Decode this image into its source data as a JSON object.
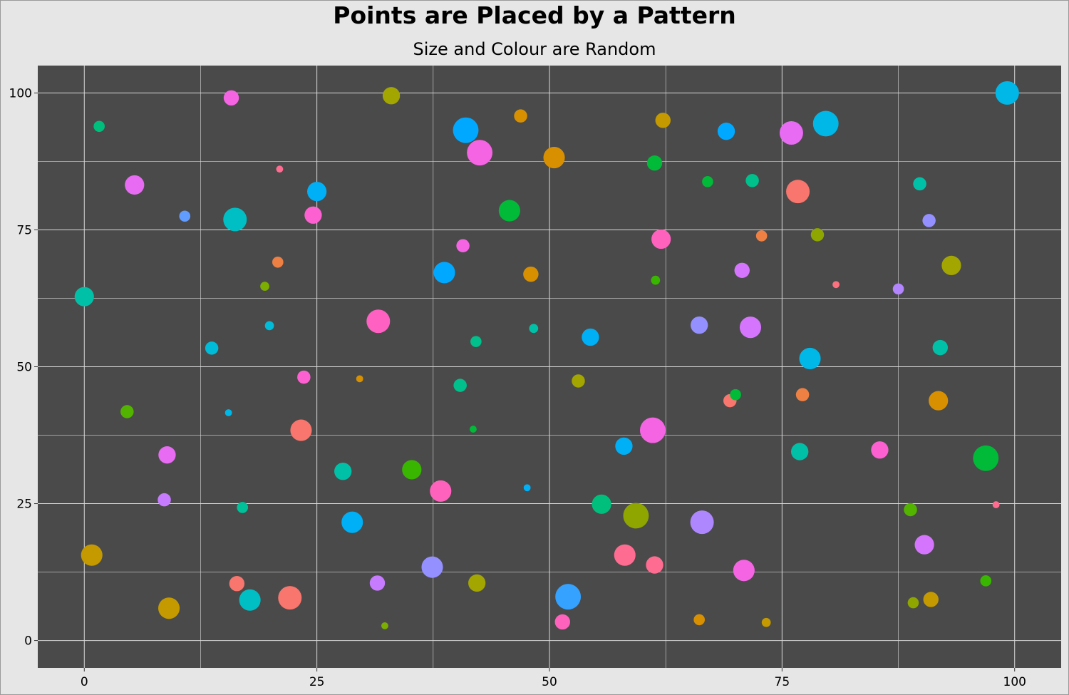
{
  "chart_data": {
    "type": "scatter",
    "title": "Points are Placed by a Pattern",
    "subtitle": "Size and Colour are Random",
    "xlabel": "",
    "ylabel": "",
    "xlim": [
      -5,
      105
    ],
    "ylim": [
      -5,
      105
    ],
    "x_ticks": [
      0,
      25,
      50,
      75,
      100
    ],
    "y_ticks": [
      0,
      25,
      50,
      75,
      100
    ],
    "grid": true,
    "legend": "none",
    "background": "#4a4a4a",
    "grid_color": "#d9d9d9",
    "points": [
      {
        "x": 0.0,
        "y": 62.8,
        "size": 8,
        "color": "#00c1a8"
      },
      {
        "x": 0.8,
        "y": 15.6,
        "size": 9,
        "color": "#c49a00"
      },
      {
        "x": 1.6,
        "y": 93.9,
        "size": 4,
        "color": "#00bf7d"
      },
      {
        "x": 4.6,
        "y": 41.8,
        "size": 5,
        "color": "#53b400"
      },
      {
        "x": 5.4,
        "y": 83.2,
        "size": 8,
        "color": "#e76bf3"
      },
      {
        "x": 8.6,
        "y": 25.7,
        "size": 5,
        "color": "#c77cff"
      },
      {
        "x": 8.9,
        "y": 33.9,
        "size": 7,
        "color": "#e76bf3"
      },
      {
        "x": 9.1,
        "y": 5.9,
        "size": 9,
        "color": "#c49a00"
      },
      {
        "x": 10.8,
        "y": 77.5,
        "size": 4,
        "color": "#619cff"
      },
      {
        "x": 13.7,
        "y": 53.4,
        "size": 5,
        "color": "#00bcd8"
      },
      {
        "x": 15.5,
        "y": 41.6,
        "size": 2,
        "color": "#00b8e7"
      },
      {
        "x": 15.8,
        "y": 99.1,
        "size": 6,
        "color": "#f564e3"
      },
      {
        "x": 16.2,
        "y": 76.9,
        "size": 10,
        "color": "#00bfc4"
      },
      {
        "x": 16.4,
        "y": 10.4,
        "size": 6,
        "color": "#f8766d"
      },
      {
        "x": 17.0,
        "y": 24.3,
        "size": 4,
        "color": "#00c19a"
      },
      {
        "x": 17.8,
        "y": 7.4,
        "size": 9,
        "color": "#00bfc4"
      },
      {
        "x": 19.4,
        "y": 64.7,
        "size": 3,
        "color": "#7cae00"
      },
      {
        "x": 19.9,
        "y": 57.5,
        "size": 3,
        "color": "#00bcd8"
      },
      {
        "x": 20.8,
        "y": 69.1,
        "size": 4,
        "color": "#ee8044"
      },
      {
        "x": 21.0,
        "y": 86.1,
        "size": 2,
        "color": "#ff6c91"
      },
      {
        "x": 22.1,
        "y": 7.8,
        "size": 10,
        "color": "#f8766d"
      },
      {
        "x": 23.3,
        "y": 38.4,
        "size": 9,
        "color": "#f8766d"
      },
      {
        "x": 23.6,
        "y": 48.1,
        "size": 5,
        "color": "#fd61d1"
      },
      {
        "x": 24.6,
        "y": 77.7,
        "size": 7,
        "color": "#fd61d1"
      },
      {
        "x": 25.0,
        "y": 82.0,
        "size": 8,
        "color": "#00b0f6"
      },
      {
        "x": 27.8,
        "y": 30.9,
        "size": 7,
        "color": "#00c1a8"
      },
      {
        "x": 28.8,
        "y": 21.6,
        "size": 9,
        "color": "#00b0f6"
      },
      {
        "x": 29.6,
        "y": 47.8,
        "size": 2,
        "color": "#d89000"
      },
      {
        "x": 31.6,
        "y": 58.3,
        "size": 10,
        "color": "#ff61c3"
      },
      {
        "x": 31.5,
        "y": 10.5,
        "size": 6,
        "color": "#c77cff"
      },
      {
        "x": 32.3,
        "y": 2.7,
        "size": 2,
        "color": "#7cae00"
      },
      {
        "x": 33.0,
        "y": 99.5,
        "size": 7,
        "color": "#a3a500"
      },
      {
        "x": 35.2,
        "y": 31.2,
        "size": 8,
        "color": "#39b600"
      },
      {
        "x": 37.4,
        "y": 13.4,
        "size": 9,
        "color": "#9590ff"
      },
      {
        "x": 38.3,
        "y": 27.3,
        "size": 9,
        "color": "#ff62bc"
      },
      {
        "x": 38.7,
        "y": 67.2,
        "size": 9,
        "color": "#00a9ff"
      },
      {
        "x": 40.4,
        "y": 46.6,
        "size": 5,
        "color": "#00c08b"
      },
      {
        "x": 40.7,
        "y": 72.1,
        "size": 5,
        "color": "#f564e3"
      },
      {
        "x": 41.0,
        "y": 93.2,
        "size": 11,
        "color": "#00a9ff"
      },
      {
        "x": 41.8,
        "y": 38.6,
        "size": 2,
        "color": "#00ba38"
      },
      {
        "x": 42.1,
        "y": 54.6,
        "size": 4,
        "color": "#00c08b"
      },
      {
        "x": 42.2,
        "y": 10.5,
        "size": 7,
        "color": "#a3a500"
      },
      {
        "x": 42.5,
        "y": 89.1,
        "size": 11,
        "color": "#f564e3"
      },
      {
        "x": 45.7,
        "y": 78.5,
        "size": 9,
        "color": "#00ba38"
      },
      {
        "x": 46.9,
        "y": 95.8,
        "size": 5,
        "color": "#d89000"
      },
      {
        "x": 47.6,
        "y": 27.9,
        "size": 2,
        "color": "#00b0f6"
      },
      {
        "x": 48.0,
        "y": 66.9,
        "size": 6,
        "color": "#d89000"
      },
      {
        "x": 48.3,
        "y": 57.0,
        "size": 3,
        "color": "#00c1a8"
      },
      {
        "x": 50.5,
        "y": 88.2,
        "size": 9,
        "color": "#d89000"
      },
      {
        "x": 51.4,
        "y": 3.4,
        "size": 6,
        "color": "#ff62bc"
      },
      {
        "x": 52.0,
        "y": 8.0,
        "size": 11,
        "color": "#35a2ff"
      },
      {
        "x": 53.1,
        "y": 47.4,
        "size": 5,
        "color": "#a3a500"
      },
      {
        "x": 54.4,
        "y": 55.4,
        "size": 7,
        "color": "#00b0f6"
      },
      {
        "x": 55.6,
        "y": 24.9,
        "size": 8,
        "color": "#00bf7d"
      },
      {
        "x": 58.0,
        "y": 35.5,
        "size": 7,
        "color": "#00b0f6"
      },
      {
        "x": 58.1,
        "y": 15.6,
        "size": 9,
        "color": "#ff6c91"
      },
      {
        "x": 59.3,
        "y": 22.8,
        "size": 11,
        "color": "#8fa500"
      },
      {
        "x": 61.1,
        "y": 38.4,
        "size": 11,
        "color": "#f564e3"
      },
      {
        "x": 61.3,
        "y": 13.8,
        "size": 7,
        "color": "#ff6c91"
      },
      {
        "x": 61.3,
        "y": 87.2,
        "size": 6,
        "color": "#00ba38"
      },
      {
        "x": 61.4,
        "y": 65.8,
        "size": 3,
        "color": "#39b600"
      },
      {
        "x": 62.0,
        "y": 73.3,
        "size": 8,
        "color": "#ff62bc"
      },
      {
        "x": 62.2,
        "y": 95.0,
        "size": 6,
        "color": "#c49a00"
      },
      {
        "x": 66.1,
        "y": 3.8,
        "size": 4,
        "color": "#d89000"
      },
      {
        "x": 66.1,
        "y": 57.6,
        "size": 7,
        "color": "#9590ff"
      },
      {
        "x": 66.4,
        "y": 21.6,
        "size": 10,
        "color": "#ae87ff"
      },
      {
        "x": 67.0,
        "y": 83.8,
        "size": 4,
        "color": "#00ba38"
      },
      {
        "x": 69.0,
        "y": 93.0,
        "size": 7,
        "color": "#00a9ff"
      },
      {
        "x": 69.4,
        "y": 43.8,
        "size": 5,
        "color": "#f8766d"
      },
      {
        "x": 70.0,
        "y": 44.9,
        "size": 4,
        "color": "#00ba38"
      },
      {
        "x": 70.7,
        "y": 67.6,
        "size": 6,
        "color": "#d575fe"
      },
      {
        "x": 70.9,
        "y": 12.8,
        "size": 9,
        "color": "#f564e3"
      },
      {
        "x": 71.6,
        "y": 57.2,
        "size": 9,
        "color": "#d575fe"
      },
      {
        "x": 71.8,
        "y": 84.0,
        "size": 5,
        "color": "#00c08b"
      },
      {
        "x": 72.8,
        "y": 73.9,
        "size": 4,
        "color": "#ee8044"
      },
      {
        "x": 73.3,
        "y": 3.3,
        "size": 3,
        "color": "#c49a00"
      },
      {
        "x": 76.0,
        "y": 92.7,
        "size": 10,
        "color": "#e76bf3"
      },
      {
        "x": 76.7,
        "y": 82.0,
        "size": 10,
        "color": "#f8766d"
      },
      {
        "x": 76.9,
        "y": 34.5,
        "size": 7,
        "color": "#00c1a8"
      },
      {
        "x": 77.2,
        "y": 44.9,
        "size": 5,
        "color": "#ee8044"
      },
      {
        "x": 78.0,
        "y": 51.5,
        "size": 9,
        "color": "#00b8e7"
      },
      {
        "x": 78.8,
        "y": 74.1,
        "size": 5,
        "color": "#8fa500"
      },
      {
        "x": 79.7,
        "y": 94.4,
        "size": 11,
        "color": "#00b8e7"
      },
      {
        "x": 80.8,
        "y": 65.0,
        "size": 2,
        "color": "#fc717f"
      },
      {
        "x": 85.5,
        "y": 34.8,
        "size": 7,
        "color": "#fd61d1"
      },
      {
        "x": 87.5,
        "y": 64.2,
        "size": 4,
        "color": "#b385ff"
      },
      {
        "x": 88.8,
        "y": 23.9,
        "size": 5,
        "color": "#53b400"
      },
      {
        "x": 89.1,
        "y": 6.9,
        "size": 4,
        "color": "#8fa500"
      },
      {
        "x": 89.8,
        "y": 83.4,
        "size": 5,
        "color": "#00c1a8"
      },
      {
        "x": 90.3,
        "y": 17.5,
        "size": 8,
        "color": "#d575fe"
      },
      {
        "x": 90.8,
        "y": 76.7,
        "size": 5,
        "color": "#9590ff"
      },
      {
        "x": 91.0,
        "y": 7.5,
        "size": 6,
        "color": "#c49a00"
      },
      {
        "x": 91.8,
        "y": 43.8,
        "size": 8,
        "color": "#d89000"
      },
      {
        "x": 92.0,
        "y": 53.5,
        "size": 6,
        "color": "#00c1a8"
      },
      {
        "x": 93.2,
        "y": 68.5,
        "size": 8,
        "color": "#a3a500"
      },
      {
        "x": 96.9,
        "y": 33.3,
        "size": 11,
        "color": "#00ba38"
      },
      {
        "x": 96.9,
        "y": 10.9,
        "size": 4,
        "color": "#39b600"
      },
      {
        "x": 98.0,
        "y": 24.8,
        "size": 2,
        "color": "#ff6c91"
      },
      {
        "x": 99.2,
        "y": 100.0,
        "size": 10,
        "color": "#00b8e7"
      }
    ]
  }
}
